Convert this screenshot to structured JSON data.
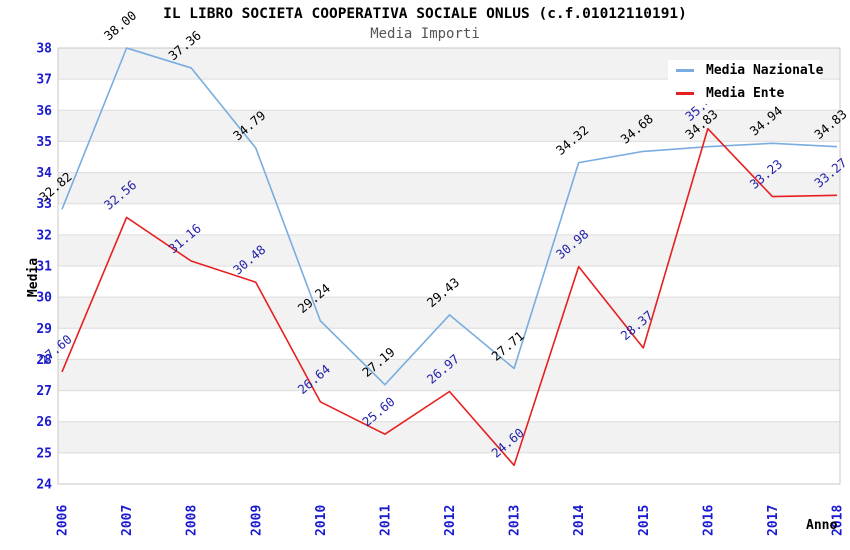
{
  "title": "IL LIBRO SOCIETA COOPERATIVA SOCIALE ONLUS (c.f.01012110191)",
  "subtitle": "Media Importi",
  "chart_data": {
    "type": "line",
    "title": "IL LIBRO SOCIETA COOPERATIVA SOCIALE ONLUS (c.f.01012110191)",
    "subtitle": "Media Importi",
    "xlabel": "Anno",
    "ylabel": "Media",
    "ylim": [
      24,
      38
    ],
    "y_tick_step": 1,
    "grid": "horizontal",
    "band_fill_alternating": true,
    "legend_position": "top-right",
    "categories": [
      "2006",
      "2007",
      "2008",
      "2009",
      "2010",
      "2011",
      "2012",
      "2013",
      "2014",
      "2015",
      "2016",
      "2017",
      "2018"
    ],
    "series": [
      {
        "name": "Media Nazionale",
        "color": "#79ade0",
        "label_color": "#000000",
        "values": [
          32.82,
          38.0,
          37.36,
          34.79,
          29.24,
          27.19,
          29.43,
          27.71,
          34.32,
          34.68,
          34.83,
          34.94,
          34.83
        ]
      },
      {
        "name": "Media Ente",
        "color": "#e62020",
        "label_color": "#2222aa",
        "values": [
          27.6,
          32.56,
          31.16,
          30.48,
          26.64,
          25.6,
          26.97,
          24.6,
          30.98,
          28.37,
          35.41,
          33.23,
          33.27
        ]
      }
    ],
    "colors": {
      "band_gray": "#f2f2f2",
      "band_white": "#ffffff",
      "grid_line": "#dcdcdc",
      "plot_border": "#c8c8c8",
      "axis_tick_label": "#1a1ad1"
    }
  }
}
